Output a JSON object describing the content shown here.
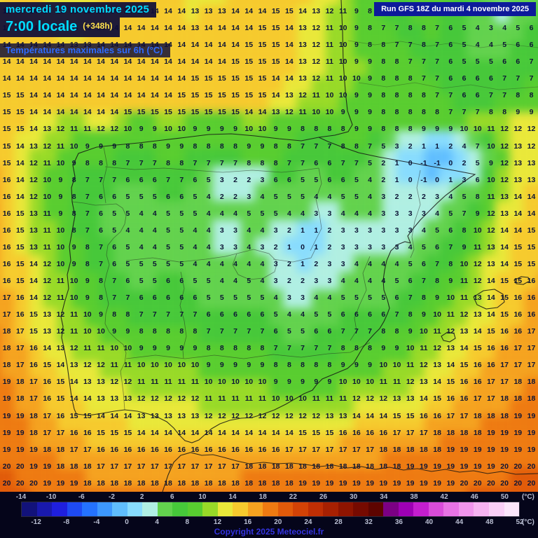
{
  "header": {
    "date": "mercredi 19 novembre 2025",
    "time": "7:00 locale",
    "forecast_offset": "(+348h)",
    "parameter": "Températures maximales sur 6h (°C)",
    "run_info": "Run GFS 18Z du mardi 4 novembre 2025"
  },
  "legend": {
    "unit_label": "(°C)",
    "ticks_top": [
      -14,
      -10,
      -6,
      -2,
      2,
      6,
      10,
      14,
      18,
      22,
      26,
      30,
      34,
      38,
      42,
      46,
      50
    ],
    "ticks_bottom": [
      -12,
      -8,
      -4,
      0,
      4,
      8,
      12,
      16,
      20,
      24,
      28,
      32,
      36,
      40,
      44,
      48,
      52
    ],
    "copyright": "Copyright 2025 Meteociel.fr"
  },
  "colors": {
    "banner_text_cyan": "#00dcff",
    "offset_yellow": "#ffe14d",
    "parameter_blue": "#2f6bff",
    "run_box_bg": "#0d1a9a",
    "copyright_blue": "#3333e0",
    "value_text": "#0d1436",
    "legend_bg": "#05051a"
  },
  "chart_data": {
    "type": "heatmap",
    "title": "Températures maximales sur 6h (°C)",
    "unit": "°C",
    "scale_min": -14,
    "scale_max": 52,
    "scale_step": 2,
    "scale_colors": [
      "#12127a",
      "#1919ae",
      "#1f1fde",
      "#1e4af2",
      "#2472ff",
      "#3d98ff",
      "#60beff",
      "#88dcff",
      "#b0efe4",
      "#62d24e",
      "#46c83a",
      "#58cd30",
      "#98da28",
      "#e9e83a",
      "#f6ca2e",
      "#f5a220",
      "#ee7a12",
      "#e15a0a",
      "#d24206",
      "#bf2e04",
      "#a72002",
      "#8e1400",
      "#760a00",
      "#5e0400",
      "#7c0084",
      "#9e00b4",
      "#c41ece",
      "#d94cda",
      "#e773e4",
      "#f095ec",
      "#f6b3f1",
      "#facff7",
      "#fce6fb"
    ],
    "grid_rows": 29,
    "grid_cols": 40,
    "values": [
      "13 14 14 14 13 13 13 13 14 14 14 14 14 14 13 13 13 14 14 14 15 15 14 13 12 11 9 8 8 7 8 8 8 7 6 5 4 4 5 5",
      "14 14 14 14 13 13 13 14 14 14 14 14 14 14 13 14 14 14 14 15 15 14 13 12 11 10 9 8 7 7 8 8 7 6 5 4 3 4 5 6",
      "14 14 14 14 14 13 13 14 14 14 14 14 14 14 14 14 14 14 15 15 15 14 13 12 11 10 9 8 8 7 7 8 7 6 5 4 4 5 6 6",
      "14 14 14 14 14 14 14 14 14 14 14 14 14 14 14 14 14 15 15 15 15 14 13 12 11 10 9 9 8 8 7 7 7 6 5 5 5 6 6 7",
      "14 14 14 14 14 14 14 14 14 14 14 14 14 14 15 15 15 15 15 15 14 14 13 12 11 10 10 9 8 8 8 7 7 6 6 6 6 7 7 7",
      "15 15 14 14 14 14 14 14 14 14 14 14 14 15 15 15 15 15 15 15 14 13 12 11 10 10 9 9 8 8 8 8 7 7 6 6 7 7 8 8",
      "15 15 14 14 14 14 14 14 14 15 15 15 15 15 15 15 15 15 14 14 13 12 11 10 10 9 9 9 8 8 8 8 8 7 7 7 8 8 9 9",
      "15 15 14 13 12 11 11 12 12 10 9 9 10 10 9 9 9 9 10 10 9 9 8 8 8 8 9 9 8 8 8 9 9 9 10 10 11 12 12 12",
      "15 14 13 12 11 10 9 9 9 8 8 8 9 9 8 8 8 8 9 9 8 8 7 7 7 8 8 7 5 3 2 1 1 2 4 7 10 12 13 12",
      "15 14 12 11 10 9 8 8 8 7 7 7 8 8 7 7 7 7 8 8 8 7 7 6 6 7 7 5 2 1 0 -1 -1 0 2 5 9 12 13 13",
      "16 14 12 10 9 8 7 7 7 6 6 6 7 7 6 5 3 2 2 3 6 6 5 5 6 6 5 4 2 1 0 -1 0 1 3 6 10 12 13 13",
      "16 14 12 10 9 8 7 6 6 5 5 5 6 6 5 4 2 2 3 4 5 5 5 4 4 5 5 4 3 2 2 2 3 4 5 8 11 13 14 14",
      "16 15 13 11 9 8 7 6 5 5 4 4 5 5 5 4 4 4 5 5 5 4 4 3 3 4 4 4 3 3 3 3 4 5 7 9 12 13 14 14",
      "16 15 13 11 10 8 7 6 5 4 4 4 5 5 4 4 3 3 4 4 3 2 1 1 2 3 3 3 3 3 3 4 5 6 8 10 12 14 14 15",
      "16 15 13 11 10 9 8 7 6 5 4 4 5 5 4 4 3 3 4 3 2 1 0 1 2 3 3 3 3 3 4 5 6 7 9 11 13 14 15 15",
      "16 15 14 12 10 9 8 7 6 5 5 5 5 5 4 4 4 4 4 4 3 2 1 2 3 3 4 4 4 4 5 6 7 8 10 12 13 14 15 15",
      "16 15 14 12 11 10 9 8 7 6 5 5 6 6 5 5 4 4 5 4 3 2 2 3 3 4 4 4 4 5 6 7 8 9 11 12 14 15 15 16",
      "17 16 14 12 11 10 9 8 7 7 6 6 6 6 6 5 5 5 5 5 4 3 3 4 4 5 5 5 5 6 7 8 9 10 11 13 14 15 16 16",
      "17 16 15 13 12 11 10 9 8 8 7 7 7 7 7 6 6 6 6 6 5 4 4 5 5 6 6 6 6 7 8 9 10 11 12 13 14 15 16 16",
      "18 17 15 13 12 11 10 10 9 9 8 8 8 8 8 7 7 7 7 7 6 5 5 6 6 7 7 7 8 8 9 10 11 12 13 14 15 16 16 17",
      "18 17 16 14 13 12 11 11 10 10 9 9 9 9 9 8 8 8 8 8 7 7 7 7 7 8 8 8 9 9 10 11 12 13 14 15 16 16 17 17",
      "18 17 16 15 14 13 12 12 11 11 10 10 10 10 10 9 9 9 9 9 8 8 8 8 8 9 9 9 10 10 11 12 13 14 15 16 16 17 17 17",
      "19 18 17 16 15 14 13 13 12 12 11 11 11 11 11 10 10 10 10 10 9 9 9 9 9 10 10 10 11 11 12 13 14 15 16 16 17 17 18 18",
      "19 18 17 16 15 14 14 13 13 13 12 12 12 12 12 11 11 11 11 11 10 10 10 11 11 11 12 12 12 13 13 14 15 16 16 17 17 18 18 18",
      "19 19 18 17 16 15 15 14 14 14 13 13 13 13 13 12 12 12 12 12 12 12 12 12 13 13 14 14 14 15 15 16 16 17 17 18 18 18 19 19",
      "19 19 18 17 17 16 16 15 15 15 14 14 14 14 14 14 14 14 14 14 14 14 15 15 15 16 16 16 16 17 17 17 18 18 18 18 19 19 19 19",
      "19 19 19 18 18 17 17 16 16 16 16 16 16 16 16 16 16 16 16 16 16 17 17 17 17 17 17 17 18 18 18 18 18 19 19 19 19 19 19 19",
      "20 20 19 19 18 18 18 17 17 17 17 17 17 17 17 17 17 17 18 18 18 18 18 18 18 18 18 18 18 18 19 19 19 19 19 19 19 20 20 20",
      "20 20 20 19 19 19 18 18 18 18 18 18 18 18 18 18 18 18 18 18 18 18 19 19 19 19 19 19 19 19 19 19 19 19 20 20 20 20 20 20"
    ]
  }
}
